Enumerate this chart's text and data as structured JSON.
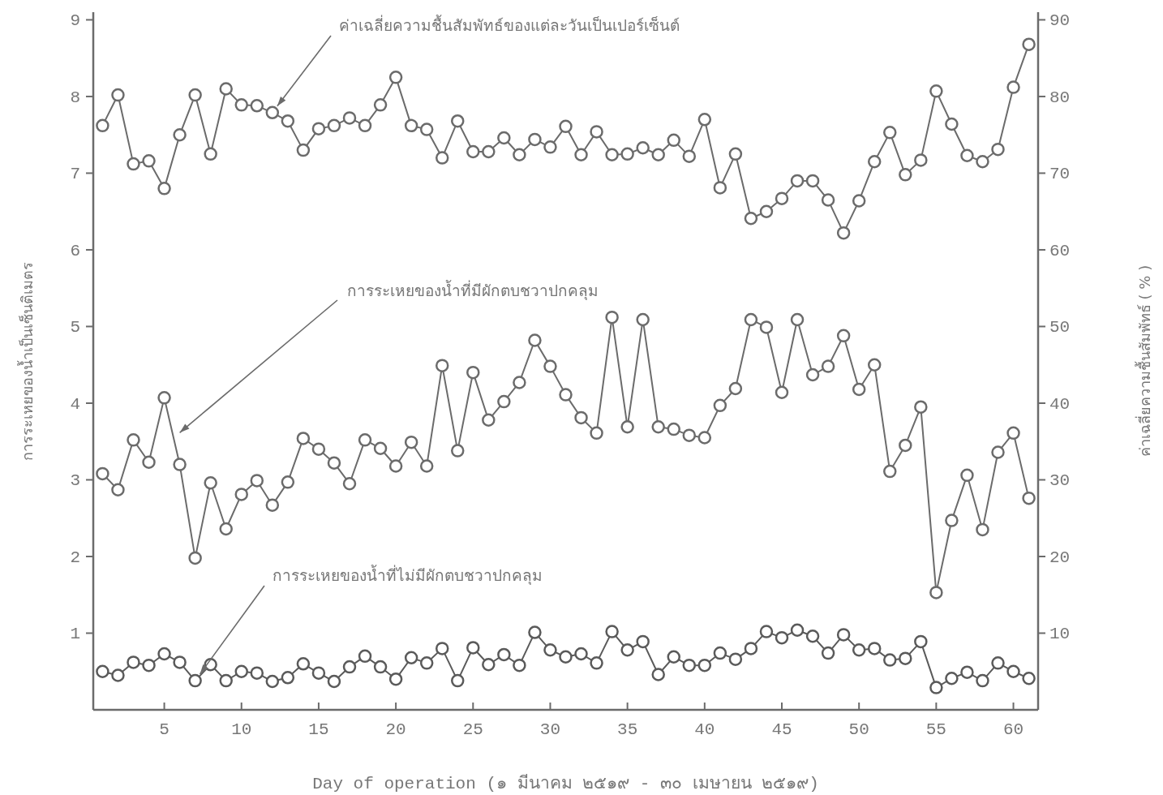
{
  "chart_data": {
    "type": "line",
    "xlabel": "Day of operation (๑ มีนาคม ๒๕๑๙ - ๓๐ เมษายน ๒๕๑๙)",
    "ylabel": "การระเหยของน้ำเป็นเซ็นติเมตร",
    "y2label": "ค่าเฉลี่ยความชื้นสัมพัทธ์ ( % )",
    "x": [
      1,
      2,
      3,
      4,
      5,
      6,
      7,
      8,
      9,
      10,
      11,
      12,
      13,
      14,
      15,
      16,
      17,
      18,
      19,
      20,
      21,
      22,
      23,
      24,
      25,
      26,
      27,
      28,
      29,
      30,
      31,
      32,
      33,
      34,
      35,
      36,
      37,
      38,
      39,
      40,
      41,
      42,
      43,
      44,
      45,
      46,
      47,
      48,
      49,
      50,
      51,
      52,
      53,
      54,
      55,
      56,
      57,
      58,
      59,
      60,
      61
    ],
    "xlim": [
      0.4,
      61.6
    ],
    "xticks": [
      5,
      10,
      15,
      20,
      25,
      30,
      35,
      40,
      45,
      50,
      55,
      60
    ],
    "ylim": [
      0,
      9.1
    ],
    "yticks": [
      1,
      2,
      3,
      4,
      5,
      6,
      7,
      8,
      9
    ],
    "y2lim": [
      0,
      91
    ],
    "y2ticks": [
      10,
      20,
      30,
      40,
      50,
      60,
      70,
      80,
      90
    ],
    "marker": "circle",
    "series": [
      {
        "name": "ค่าเฉลี่ยความชื้นสัมพัทธ์ของแต่ละวันเป็นเปอร์เซ็นต์",
        "axis": "y2",
        "color": "#6b6b6b",
        "values": [
          76.2,
          80.2,
          71.2,
          71.6,
          68.0,
          75.0,
          80.2,
          72.5,
          81.0,
          78.9,
          78.8,
          77.9,
          76.8,
          73.0,
          75.8,
          76.2,
          77.2,
          76.2,
          78.9,
          82.5,
          76.2,
          75.7,
          72.0,
          76.8,
          72.8,
          72.8,
          74.6,
          72.4,
          74.4,
          73.4,
          76.1,
          72.4,
          75.4,
          72.4,
          72.5,
          73.3,
          72.4,
          74.3,
          72.2,
          77.0,
          68.1,
          72.5,
          64.1,
          65.0,
          66.7,
          69.0,
          69.0,
          66.5,
          62.2,
          66.4,
          71.5,
          75.3,
          69.8,
          71.7,
          80.7,
          76.4,
          72.3,
          71.5,
          73.1,
          81.2,
          86.8
        ]
      },
      {
        "name": "การระเหยของน้ำที่มีผักตบชวาปกคลุม",
        "color": "#6b6b6b",
        "values": [
          3.08,
          2.87,
          3.52,
          3.23,
          4.07,
          3.2,
          1.98,
          2.96,
          2.36,
          2.81,
          2.99,
          2.67,
          2.97,
          3.54,
          3.4,
          3.22,
          2.95,
          3.52,
          3.41,
          3.18,
          3.49,
          3.18,
          4.49,
          3.38,
          4.4,
          3.78,
          4.02,
          4.27,
          4.82,
          4.48,
          4.11,
          3.81,
          3.61,
          5.12,
          3.69,
          5.09,
          3.69,
          3.66,
          3.58,
          3.55,
          3.97,
          4.19,
          5.09,
          4.99,
          4.14,
          5.09,
          4.37,
          4.48,
          4.88,
          4.18,
          4.5,
          3.11,
          3.45,
          3.95,
          1.53,
          2.47,
          3.06,
          2.35,
          3.36,
          3.61,
          2.76
        ]
      },
      {
        "name": "การระเหยของน้ำที่ไม่มีผักตบชวาปกคลุม",
        "color": "#5a5a5a",
        "values": [
          0.5,
          0.45,
          0.62,
          0.58,
          0.73,
          0.62,
          0.38,
          0.59,
          0.38,
          0.5,
          0.48,
          0.37,
          0.42,
          0.6,
          0.48,
          0.37,
          0.56,
          0.7,
          0.56,
          0.4,
          0.68,
          0.61,
          0.8,
          0.38,
          0.81,
          0.59,
          0.72,
          0.58,
          1.01,
          0.78,
          0.69,
          0.73,
          0.61,
          1.02,
          0.78,
          0.89,
          0.46,
          0.69,
          0.58,
          0.58,
          0.74,
          0.66,
          0.8,
          1.02,
          0.94,
          1.04,
          0.96,
          0.74,
          0.98,
          0.78,
          0.8,
          0.65,
          0.67,
          0.89,
          0.29,
          0.41,
          0.49,
          0.38,
          0.61,
          0.5,
          0.41
        ]
      }
    ]
  }
}
